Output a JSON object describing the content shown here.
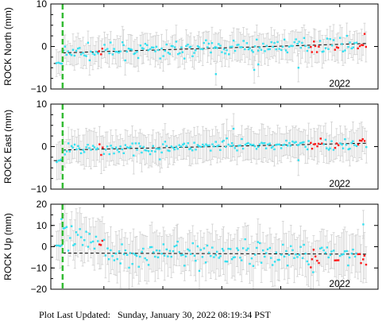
{
  "footer": {
    "prefix": "Plot Last Updated:",
    "datetime": "Sunday, January 30, 2022 08:19:34 PST"
  },
  "colors": {
    "point": "#33e0f0",
    "recent_point": "#ff1a1a",
    "errorbar": "#d0d0d0",
    "trend": "#000000",
    "event": "#33bb33"
  },
  "chart_data": [
    {
      "type": "scatter",
      "ylabel": "ROCK North (mm)",
      "ylim": [
        -10,
        10
      ],
      "yticks": [
        "10",
        "0",
        "−10"
      ],
      "yticks_values": [
        10,
        0,
        -10
      ],
      "xticks": [
        "2022"
      ],
      "xticks_values": [
        2022.0
      ],
      "xlim": [
        2017.1,
        2022.65
      ],
      "event_x": 2017.3,
      "grid": false,
      "trend": {
        "x": [
          2017.3,
          2022.45
        ],
        "y": [
          -1.5,
          0.7
        ]
      },
      "pre_event": {
        "x": [
          2017.15,
          2017.3
        ],
        "y": [
          -4.0,
          -4.0
        ]
      },
      "range_start": 2017.2,
      "range_end": 2022.45,
      "center": 0,
      "spread": 1.5,
      "bar": 3,
      "red_ranges": [
        [
          2017.9,
          2017.98
        ],
        [
          2021.5,
          2021.65
        ],
        [
          2021.9,
          2022.0
        ],
        [
          2022.3,
          2022.45
        ]
      ],
      "outliers": [
        {
          "x": 2019.9,
          "y": -6.5
        },
        {
          "x": 2020.55,
          "y": -5.5
        },
        {
          "x": 2020.62,
          "y": -4.2
        },
        {
          "x": 2021.3,
          "y": -5.0
        }
      ]
    },
    {
      "type": "scatter",
      "ylabel": "ROCK East (mm)",
      "ylim": [
        -10,
        10
      ],
      "yticks": [
        "10",
        "0",
        "−10"
      ],
      "yticks_values": [
        10,
        0,
        -10
      ],
      "xticks": [
        "2022"
      ],
      "xticks_values": [
        2022.0
      ],
      "xlim": [
        2017.1,
        2022.65
      ],
      "event_x": 2017.3,
      "grid": false,
      "trend": {
        "x": [
          2017.3,
          2022.45
        ],
        "y": [
          -0.8,
          0.8
        ]
      },
      "pre_event": {
        "x": [
          2017.15,
          2017.3
        ],
        "y": [
          -3.3,
          -3.3
        ]
      },
      "range_start": 2017.2,
      "range_end": 2022.45,
      "center": 0,
      "spread": 1.3,
      "bar": 3.5,
      "red_ranges": [
        [
          2017.9,
          2017.98
        ],
        [
          2021.5,
          2021.7
        ],
        [
          2021.9,
          2022.0
        ],
        [
          2022.3,
          2022.45
        ]
      ],
      "outliers": [
        {
          "x": 2020.2,
          "y": 4.2
        },
        {
          "x": 2021.3,
          "y": -3.2
        },
        {
          "x": 2018.95,
          "y": -3.0
        }
      ]
    },
    {
      "type": "scatter",
      "ylabel": "ROCK Up (mm)",
      "ylim": [
        -20,
        20
      ],
      "yticks": [
        "20",
        "10",
        "0",
        "−10",
        "−20"
      ],
      "yticks_values": [
        20,
        10,
        0,
        -10,
        -20
      ],
      "xticks": [
        "2022"
      ],
      "xticks_values": [
        2022.0
      ],
      "xlim": [
        2017.1,
        2022.65
      ],
      "event_x": 2017.3,
      "grid": false,
      "trend": {
        "x": [
          2017.3,
          2022.45
        ],
        "y": [
          -3.0,
          -3.5
        ]
      },
      "pre_event": {
        "x": [
          2017.15,
          2017.3
        ],
        "y": [
          0.5,
          0.5
        ]
      },
      "range_start": 2017.2,
      "range_end": 2022.45,
      "center": 0,
      "spread": 5.5,
      "bar": 9,
      "red_ranges": [
        [
          2017.9,
          2017.98
        ],
        [
          2021.5,
          2021.65
        ],
        [
          2021.9,
          2022.0
        ],
        [
          2022.3,
          2022.45
        ]
      ],
      "outliers": [
        {
          "x": 2017.28,
          "y": 13
        },
        {
          "x": 2021.55,
          "y": -12
        },
        {
          "x": 2022.4,
          "y": 10.5
        }
      ]
    }
  ]
}
